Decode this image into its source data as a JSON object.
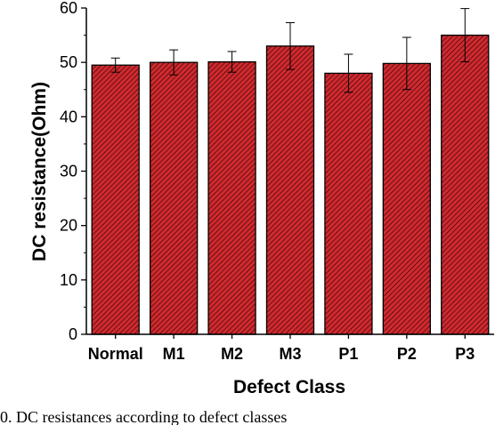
{
  "caption": "0.  DC resistances according to defect classes",
  "chart_data": {
    "type": "bar",
    "categories": [
      "Normal",
      "M1",
      "M2",
      "M3",
      "P1",
      "P2",
      "P3"
    ],
    "values": [
      49.5,
      50.0,
      50.1,
      53.0,
      48.0,
      49.8,
      55.0
    ],
    "errors": [
      1.3,
      2.3,
      1.9,
      4.3,
      3.5,
      4.8,
      4.9
    ],
    "title": "",
    "xlabel": "Defect Class",
    "ylabel": "DC resistance(Ohm)",
    "ylim": [
      0,
      60
    ],
    "yticks": [
      "0",
      "10",
      "20",
      "30",
      "40",
      "50",
      "60"
    ],
    "bar_color": "#d02a2f",
    "hatch_color": "#3a0508",
    "grid": false
  }
}
